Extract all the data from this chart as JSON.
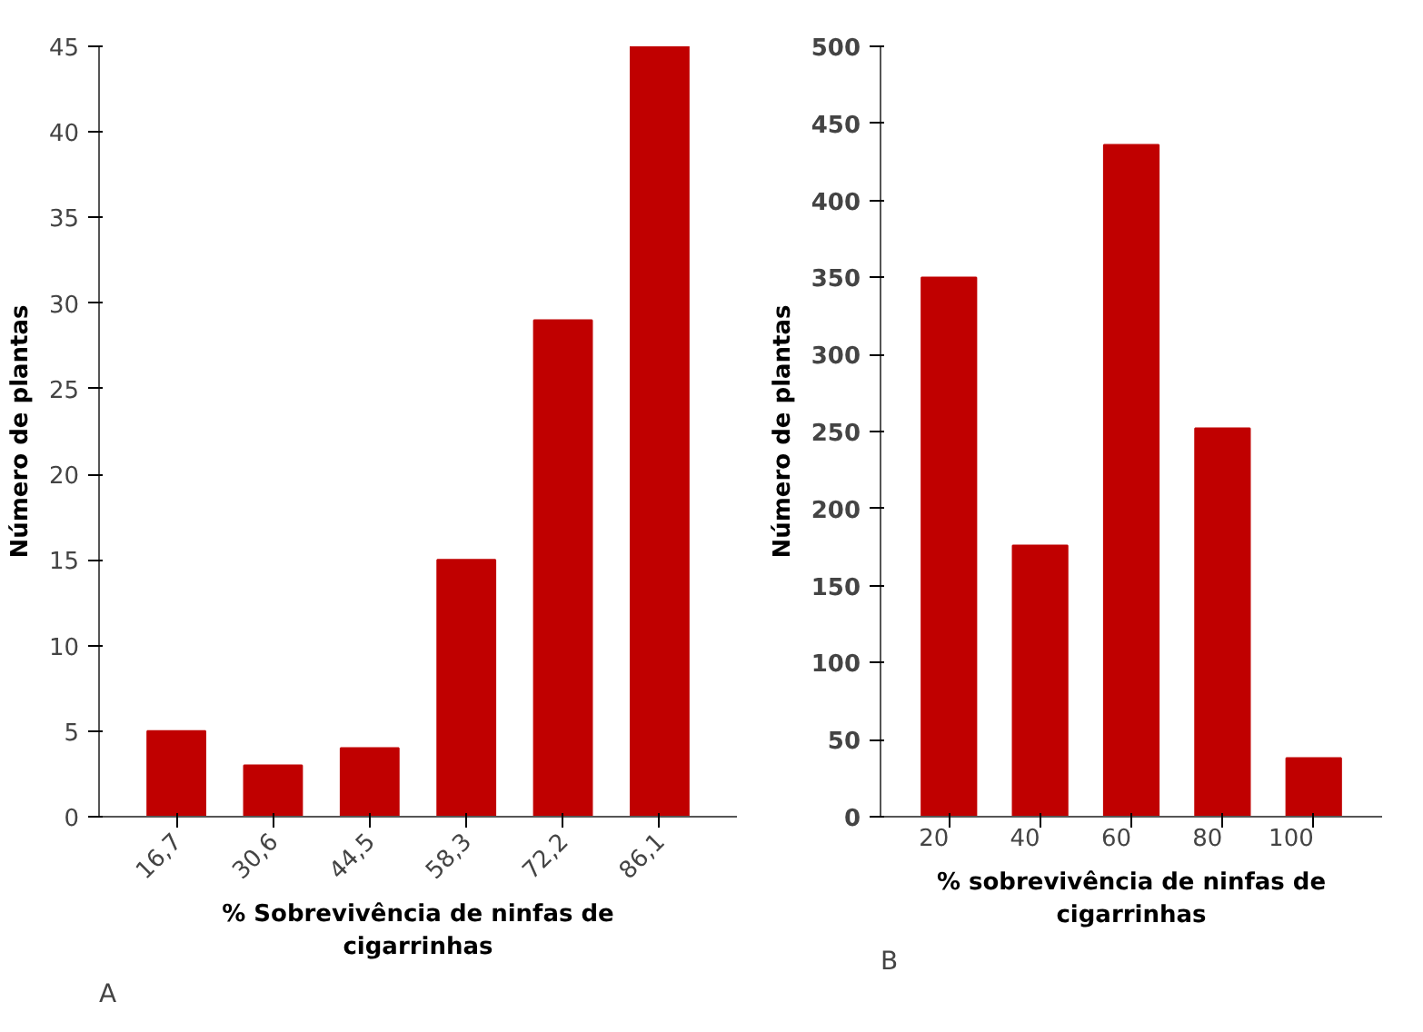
{
  "chart_data": [
    {
      "type": "bar",
      "categories": [
        "16,7",
        "30,6",
        "44,5",
        "58,3",
        "72,2",
        "86,1"
      ],
      "values": [
        5,
        3,
        4,
        15,
        29,
        45
      ],
      "color": "#c00000",
      "ylim": [
        0,
        45
      ],
      "yticks": [
        0,
        5,
        10,
        15,
        20,
        25,
        30,
        35,
        40,
        45
      ],
      "xlabel": "% Sobrevivência de ninfas de cigarrinhas",
      "ylabel": "Número de plantas",
      "annotations": [
        "A"
      ],
      "grid": false
    },
    {
      "type": "bar",
      "categories": [
        "20",
        "40",
        "60",
        "80",
        "100"
      ],
      "values": [
        350,
        176,
        436,
        252,
        38
      ],
      "color": "#c00000",
      "ylim": [
        0,
        500
      ],
      "yticks": [
        0,
        50,
        100,
        150,
        200,
        250,
        300,
        350,
        400,
        450,
        500
      ],
      "xlabel": "% sobrevivência de ninfas de cigarrinhas",
      "ylabel": "Número de plantas",
      "annotations": [
        "B"
      ],
      "grid": false
    }
  ]
}
